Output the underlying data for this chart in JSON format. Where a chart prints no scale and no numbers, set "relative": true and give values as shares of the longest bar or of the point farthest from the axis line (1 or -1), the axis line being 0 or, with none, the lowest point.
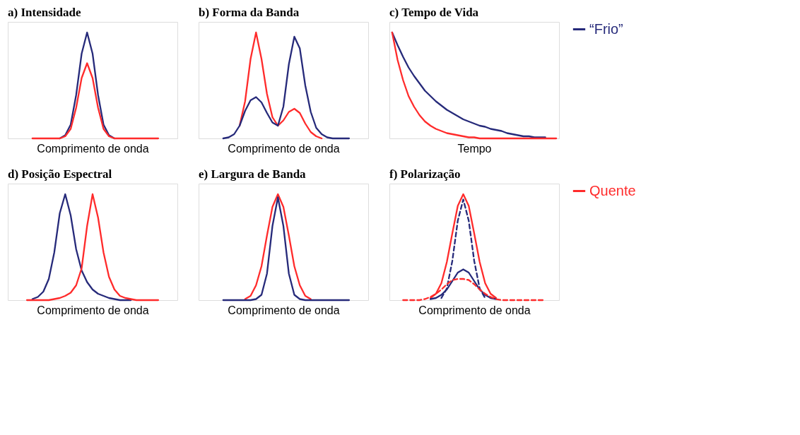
{
  "chart_data": [
    {
      "type": "line",
      "title": "a) Intensidade",
      "xlabel": "Comprimento de onda",
      "relative": true,
      "tick_labels": false,
      "grid": false,
      "legend": false,
      "categories": [
        null,
        null,
        null,
        null,
        null,
        null,
        null,
        null,
        null,
        null,
        null,
        null,
        null,
        null,
        null,
        null,
        null,
        null,
        null,
        null,
        null,
        null,
        null,
        null,
        null,
        null,
        null,
        null,
        null,
        null,
        null
      ],
      "series": [
        {
          "color": "#262a7a",
          "values": [
            null,
            null,
            null,
            null,
            null,
            null,
            null,
            null,
            null,
            0,
            0.03,
            0.13,
            0.41,
            0.8,
            1,
            0.8,
            0.41,
            0.13,
            0.03,
            0,
            null,
            null,
            null,
            null,
            null,
            null,
            null,
            null,
            null,
            null,
            null
          ]
        },
        {
          "color": "#ff2b2b",
          "values": [
            null,
            null,
            null,
            null,
            0,
            0,
            0,
            0,
            0,
            0,
            0.02,
            0.09,
            0.29,
            0.57,
            0.71,
            0.57,
            0.29,
            0.09,
            0.02,
            0,
            0,
            0,
            0,
            0,
            0,
            0,
            0,
            0,
            null,
            null,
            null
          ]
        }
      ]
    },
    {
      "type": "line",
      "title": "b) Forma da Banda",
      "xlabel": "Comprimento de onda",
      "relative": true,
      "tick_labels": false,
      "grid": false,
      "legend": false,
      "categories": [
        null,
        null,
        null,
        null,
        null,
        null,
        null,
        null,
        null,
        null,
        null,
        null,
        null,
        null,
        null,
        null,
        null,
        null,
        null,
        null,
        null,
        null,
        null,
        null,
        null,
        null,
        null,
        null,
        null,
        null,
        null
      ],
      "series": [
        {
          "color": "#ff2b2b",
          "values": [
            null,
            null,
            null,
            null,
            null,
            null,
            null,
            0.12,
            0.35,
            0.75,
            1,
            0.75,
            0.42,
            0.2,
            0.12,
            0.17,
            0.25,
            0.28,
            0.24,
            0.14,
            0.06,
            0.02,
            0,
            null,
            null,
            null,
            null,
            null,
            null,
            null,
            null
          ]
        },
        {
          "color": "#262a7a",
          "values": [
            null,
            null,
            null,
            null,
            0,
            0.01,
            0.04,
            0.12,
            0.26,
            0.36,
            0.39,
            0.34,
            0.24,
            0.15,
            0.12,
            0.3,
            0.7,
            0.96,
            0.85,
            0.5,
            0.25,
            0.1,
            0.04,
            0.01,
            0,
            0,
            0,
            0,
            null,
            null,
            null
          ]
        }
      ]
    },
    {
      "type": "line",
      "title": "c) Tempo de Vida",
      "xlabel": "Tempo",
      "relative": true,
      "tick_labels": false,
      "grid": false,
      "legend": "right",
      "categories": [
        null,
        null,
        null,
        null,
        null,
        null,
        null,
        null,
        null,
        null,
        null,
        null,
        null,
        null,
        null,
        null,
        null,
        null,
        null,
        null,
        null,
        null,
        null,
        null,
        null,
        null,
        null,
        null,
        null,
        null,
        null
      ],
      "series": [
        {
          "name": "“Frio”",
          "color": "#262a7a",
          "values": [
            1,
            0.88,
            0.77,
            0.67,
            0.59,
            0.52,
            0.45,
            0.4,
            0.35,
            0.31,
            0.27,
            0.24,
            0.21,
            0.18,
            0.16,
            0.14,
            0.12,
            0.11,
            0.09,
            0.08,
            0.07,
            0.05,
            0.04,
            0.03,
            0.02,
            0.02,
            0.01,
            0.01,
            0.01,
            null,
            null
          ]
        },
        {
          "color": "#ff2b2b",
          "values": [
            1,
            0.74,
            0.55,
            0.4,
            0.3,
            0.22,
            0.16,
            0.12,
            0.09,
            0.07,
            0.05,
            0.04,
            0.03,
            0.02,
            0.01,
            0.01,
            0,
            0,
            0,
            0,
            0,
            0,
            0,
            0,
            0,
            0,
            0,
            0,
            0,
            0,
            0
          ]
        }
      ]
    },
    {
      "type": "line",
      "title": "d) Posição Espectral",
      "xlabel": "Comprimento de onda",
      "relative": true,
      "tick_labels": false,
      "grid": false,
      "legend": false,
      "categories": [
        null,
        null,
        null,
        null,
        null,
        null,
        null,
        null,
        null,
        null,
        null,
        null,
        null,
        null,
        null,
        null,
        null,
        null,
        null,
        null,
        null,
        null,
        null,
        null,
        null,
        null,
        null,
        null,
        null,
        null,
        null
      ],
      "series": [
        {
          "color": "#262a7a",
          "values": [
            null,
            null,
            null,
            null,
            0.01,
            0.03,
            0.08,
            0.2,
            0.45,
            0.82,
            1,
            0.8,
            0.48,
            0.28,
            0.17,
            0.1,
            0.06,
            0.04,
            0.02,
            0.01,
            0,
            0,
            0,
            null,
            null,
            null,
            null,
            null,
            null,
            null,
            null
          ]
        },
        {
          "color": "#ff2b2b",
          "values": [
            null,
            null,
            null,
            0,
            0,
            0,
            0,
            0,
            0.01,
            0.02,
            0.04,
            0.07,
            0.14,
            0.3,
            0.7,
            1,
            0.78,
            0.45,
            0.22,
            0.1,
            0.04,
            0.02,
            0.01,
            0,
            0,
            0,
            0,
            0,
            null,
            null,
            null
          ]
        }
      ]
    },
    {
      "type": "line",
      "title": "e) Largura de Banda",
      "xlabel": "Comprimento de onda",
      "relative": true,
      "tick_labels": false,
      "grid": false,
      "legend": false,
      "categories": [
        null,
        null,
        null,
        null,
        null,
        null,
        null,
        null,
        null,
        null,
        null,
        null,
        null,
        null,
        null,
        null,
        null,
        null,
        null,
        null,
        null,
        null,
        null,
        null,
        null,
        null,
        null,
        null,
        null,
        null,
        null
      ],
      "series": [
        {
          "color": "#ff2b2b",
          "values": [
            null,
            null,
            null,
            null,
            null,
            null,
            null,
            null,
            0.01,
            0.04,
            0.14,
            0.32,
            0.61,
            0.88,
            1,
            0.88,
            0.61,
            0.32,
            0.14,
            0.04,
            0.01,
            null,
            null,
            null,
            null,
            null,
            null,
            null,
            null,
            null,
            null
          ]
        },
        {
          "color": "#262a7a",
          "values": [
            null,
            null,
            null,
            null,
            0,
            0,
            0,
            0,
            0,
            0,
            0.01,
            0.05,
            0.25,
            0.7,
            0.97,
            0.7,
            0.25,
            0.05,
            0.01,
            0,
            0,
            0,
            0,
            0,
            0,
            0,
            0,
            0,
            null,
            null,
            null
          ]
        }
      ]
    },
    {
      "type": "line",
      "title": "f) Polarização",
      "xlabel": "Comprimento de onda",
      "relative": true,
      "tick_labels": false,
      "grid": false,
      "legend": "right",
      "categories": [
        null,
        null,
        null,
        null,
        null,
        null,
        null,
        null,
        null,
        null,
        null,
        null,
        null,
        null,
        null,
        null,
        null,
        null,
        null,
        null,
        null,
        null,
        null,
        null,
        null,
        null,
        null,
        null,
        null,
        null,
        null
      ],
      "series": [
        {
          "name": "Quente",
          "color": "#ff2b2b",
          "line_style": "solid",
          "values": [
            null,
            null,
            null,
            null,
            null,
            null,
            null,
            0.02,
            0.06,
            0.16,
            0.36,
            0.63,
            0.89,
            1,
            0.89,
            0.63,
            0.36,
            0.16,
            0.06,
            0.02,
            null,
            null,
            null,
            null,
            null,
            null,
            null,
            null,
            null,
            null,
            null
          ]
        },
        {
          "color": "#262a7a",
          "line_style": "dashed",
          "values": [
            null,
            null,
            null,
            null,
            null,
            null,
            null,
            null,
            null,
            0.02,
            0.11,
            0.37,
            0.75,
            0.95,
            0.75,
            0.37,
            0.11,
            0.02,
            null,
            null,
            null,
            null,
            null,
            null,
            null,
            null,
            null,
            null,
            null,
            null,
            null
          ]
        },
        {
          "color": "#262a7a",
          "line_style": "solid",
          "values": [
            null,
            null,
            null,
            null,
            null,
            null,
            null,
            0.01,
            0.02,
            0.05,
            0.1,
            0.18,
            0.26,
            0.29,
            0.26,
            0.18,
            0.1,
            0.05,
            0.02,
            0.01,
            null,
            null,
            null,
            null,
            null,
            null,
            null,
            null,
            null,
            null,
            null
          ]
        },
        {
          "color": "#ff2b2b",
          "line_style": "dashed",
          "values": [
            null,
            null,
            0,
            0,
            0,
            0,
            0.01,
            0.03,
            0.06,
            0.1,
            0.15,
            0.19,
            0.2,
            0.2,
            0.19,
            0.15,
            0.1,
            0.06,
            0.03,
            0.01,
            0,
            0,
            0,
            0,
            0,
            0,
            0,
            0,
            0,
            null,
            null
          ]
        }
      ]
    }
  ]
}
